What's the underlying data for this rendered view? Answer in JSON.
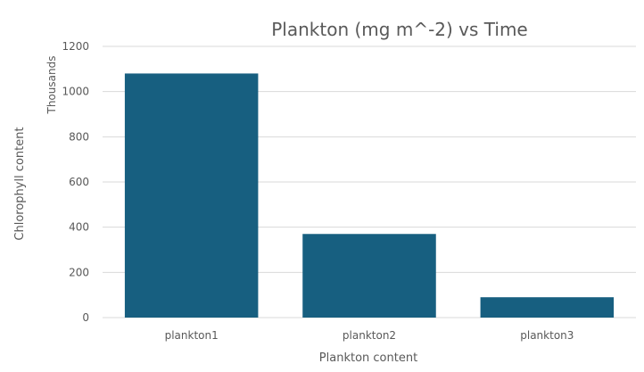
{
  "chart_data": {
    "type": "bar",
    "title": "Plankton (mg m^-2) vs Time",
    "xlabel": "Plankton content",
    "ylabel": "Chlorophyll content",
    "y_unit_label": "Thousands",
    "categories": [
      "plankton1",
      "plankton2",
      "plankton3"
    ],
    "values": [
      1080,
      370,
      90
    ],
    "ylim": [
      0,
      1200
    ],
    "yticks": [
      "0",
      "200",
      "400",
      "600",
      "800",
      "1000",
      "1200"
    ],
    "grid": true,
    "legend": "none",
    "bar_color": "#175F80"
  }
}
